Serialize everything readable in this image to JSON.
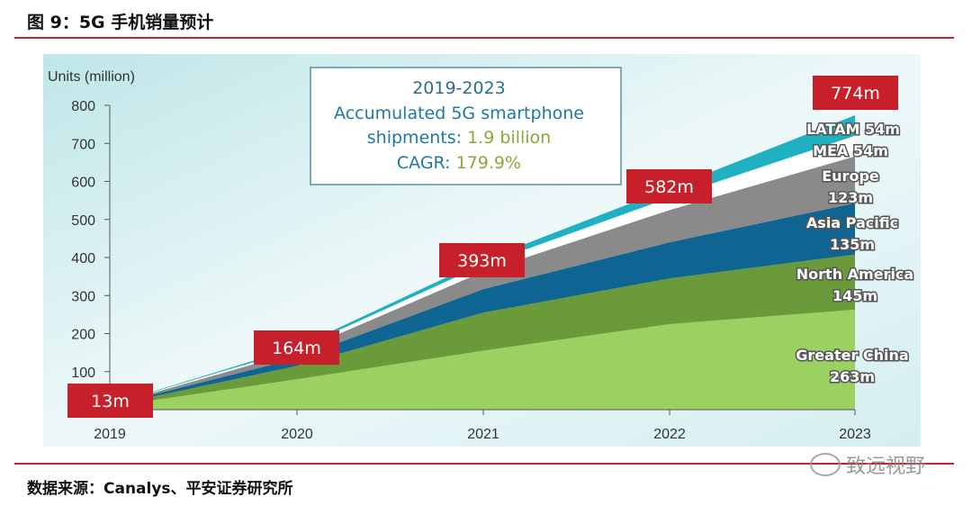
{
  "figure_title": "图 9：5G 手机销量预计",
  "source": "数据来源：Canalys、平安证券研究所",
  "watermark": "致远视野",
  "chart_data": {
    "type": "area",
    "stacked": true,
    "ylabel": "Units (million)",
    "ylim": [
      0,
      800
    ],
    "yticks": [
      100,
      200,
      300,
      400,
      500,
      600,
      700,
      800
    ],
    "categories": [
      "2019",
      "2020",
      "2021",
      "2022",
      "2023"
    ],
    "series": [
      {
        "name": "Greater China",
        "label": "263m",
        "color": "#9bd160",
        "values": [
          8,
          80,
          155,
          225,
          263
        ]
      },
      {
        "name": "North America",
        "label": "145m",
        "color": "#6a9a3a",
        "values": [
          2,
          35,
          100,
          120,
          145
        ]
      },
      {
        "name": "Asia Pacific",
        "label": "135m",
        "color": "#0e6591",
        "values": [
          1,
          20,
          62,
          95,
          135
        ]
      },
      {
        "name": "Europe",
        "label": "123m",
        "color": "#8a8a8a",
        "values": [
          1,
          17,
          46,
          85,
          123
        ]
      },
      {
        "name": "MEA",
        "label": "54m",
        "color": "#ffffff",
        "values": [
          0.5,
          7,
          18,
          32,
          54
        ]
      },
      {
        "name": "LATAM",
        "label": "54m",
        "color": "#1fb1c1",
        "values": [
          0.5,
          5,
          12,
          25,
          54
        ]
      }
    ],
    "totals": [
      "13m",
      "164m",
      "393m",
      "582m",
      "774m"
    ],
    "totals_color": "#c8202a",
    "annotation": {
      "line1": "2019-2023",
      "line2": "Accumulated 5G smartphone",
      "line3a": "shipments: ",
      "line3b": "1.9 billion",
      "line4a": "CAGR: ",
      "line4b": "179.9%"
    },
    "grid": false
  }
}
